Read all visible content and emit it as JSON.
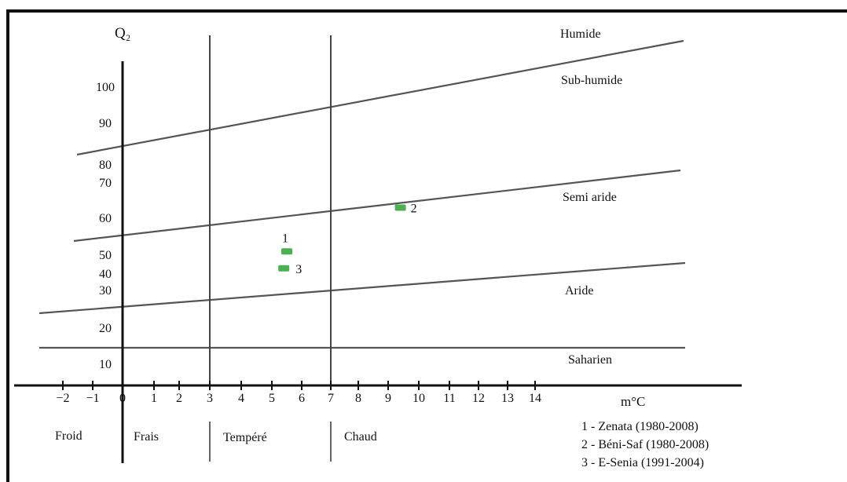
{
  "chart_data": {
    "type": "scatter",
    "title": "",
    "ylabel": "Q₂",
    "xlabel": "m°C",
    "x_ticks": [
      "−2",
      "−1",
      "0",
      "1",
      "2",
      "3",
      "4",
      "5",
      "6",
      "7",
      "8",
      "9",
      "10",
      "11",
      "12",
      "13",
      "14"
    ],
    "y_ticks": [
      "100",
      "90",
      "80",
      "70",
      "60",
      "50",
      "40",
      "30",
      "20",
      "10"
    ],
    "zones": [
      "Humide",
      "Sub-humide",
      "Semi aride",
      "Aride",
      "Saharien"
    ],
    "thermal_classes": [
      "Froid",
      "Frais",
      "Tempéré",
      "Chaud"
    ],
    "thermal_boundaries": [
      0,
      3,
      7
    ],
    "series": [
      {
        "points": [
          {
            "label": "1",
            "x": 5.5,
            "y": 51
          },
          {
            "label": "2",
            "x": 9.4,
            "y": 63
          },
          {
            "label": "3",
            "x": 5.4,
            "y": 43
          }
        ]
      }
    ],
    "legend": [
      "1 - Zenata (1980-2008)",
      "2 - Béni-Saf (1980-2008)",
      "3 - E-Senia (1991-2004)"
    ],
    "legend_position": "bottom-right",
    "point_color": "#4caf50",
    "grid": false
  }
}
